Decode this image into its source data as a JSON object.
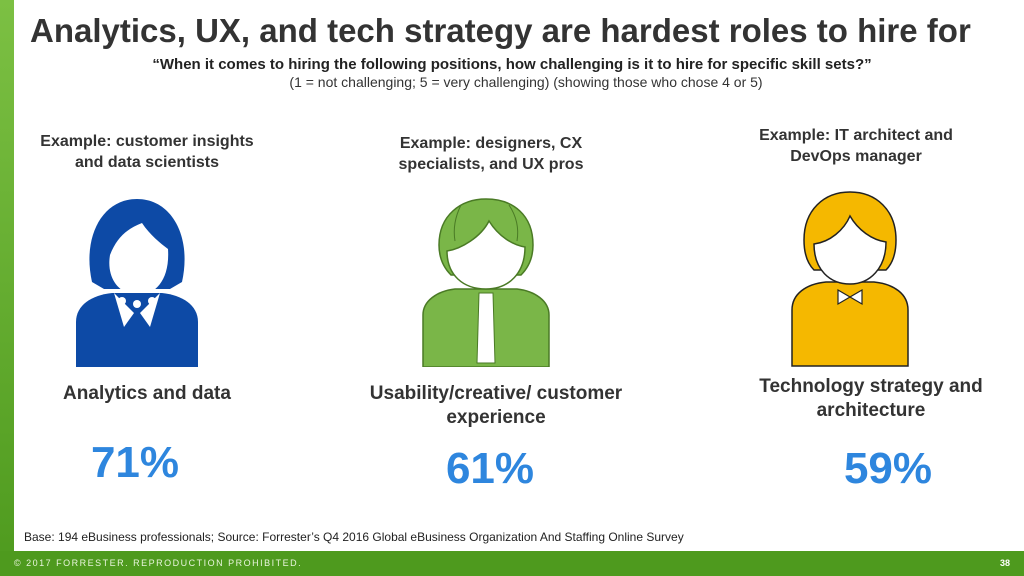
{
  "title": "Analytics, UX, and tech strategy are hardest roles to hire for",
  "question": "“When it comes to hiring the following positions, how challenging is it to hire for specific skill sets?”",
  "scale_note": "(1 = not challenging; 5 = very challenging) (showing those who chose 4 or 5)",
  "roles": [
    {
      "example": "Example: customer insights and data scientists",
      "name": "Analytics and data",
      "percent": "71%",
      "icon": "woman-person-icon",
      "color": "#0d4aa6"
    },
    {
      "example": "Example: designers, CX specialists, and UX pros",
      "name": "Usability/creative/ customer experience",
      "percent": "61%",
      "icon": "man-with-tie-icon",
      "color": "#7ab648"
    },
    {
      "example": "Example: IT architect and DevOps manager",
      "name": "Technology strategy and architecture",
      "percent": "59%",
      "icon": "person-with-bowtie-icon",
      "color": "#f5b800"
    }
  ],
  "base_note": "Base: 194 eBusiness professionals; Source: Forrester’s Q4 2016 Global eBusiness Organization And Staffing Online Survey",
  "footer": {
    "copyright": "© 2017 FORRESTER. REPRODUCTION PROHIBITED.",
    "page_number": "38"
  }
}
